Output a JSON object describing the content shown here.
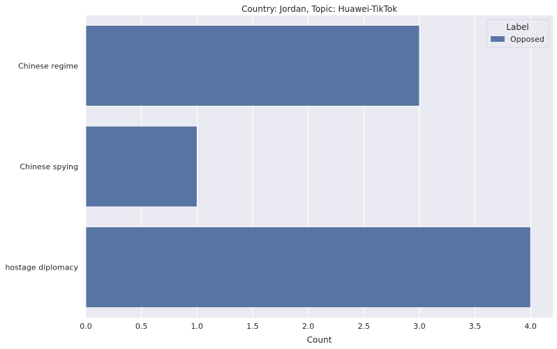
{
  "chart_data": {
    "type": "bar",
    "orientation": "horizontal",
    "title": "Country: Jordan, Topic: Huawei-TikTok",
    "xlabel": "Count",
    "ylabel": "",
    "categories": [
      "Chinese regime",
      "Chinese spying",
      "hostage diplomacy"
    ],
    "series": [
      {
        "name": "Opposed",
        "values": [
          3,
          1,
          4
        ],
        "color": "#5874a4"
      }
    ],
    "xlim": [
      0,
      4.2
    ],
    "xticks": [
      "0.0",
      "0.5",
      "1.0",
      "1.5",
      "2.0",
      "2.5",
      "3.0",
      "3.5",
      "4.0"
    ],
    "grid": true,
    "legend": {
      "title": "Label",
      "placement": "top-right"
    },
    "colors": {
      "background": "#eaeaf2",
      "grid": "#ffffff"
    }
  }
}
